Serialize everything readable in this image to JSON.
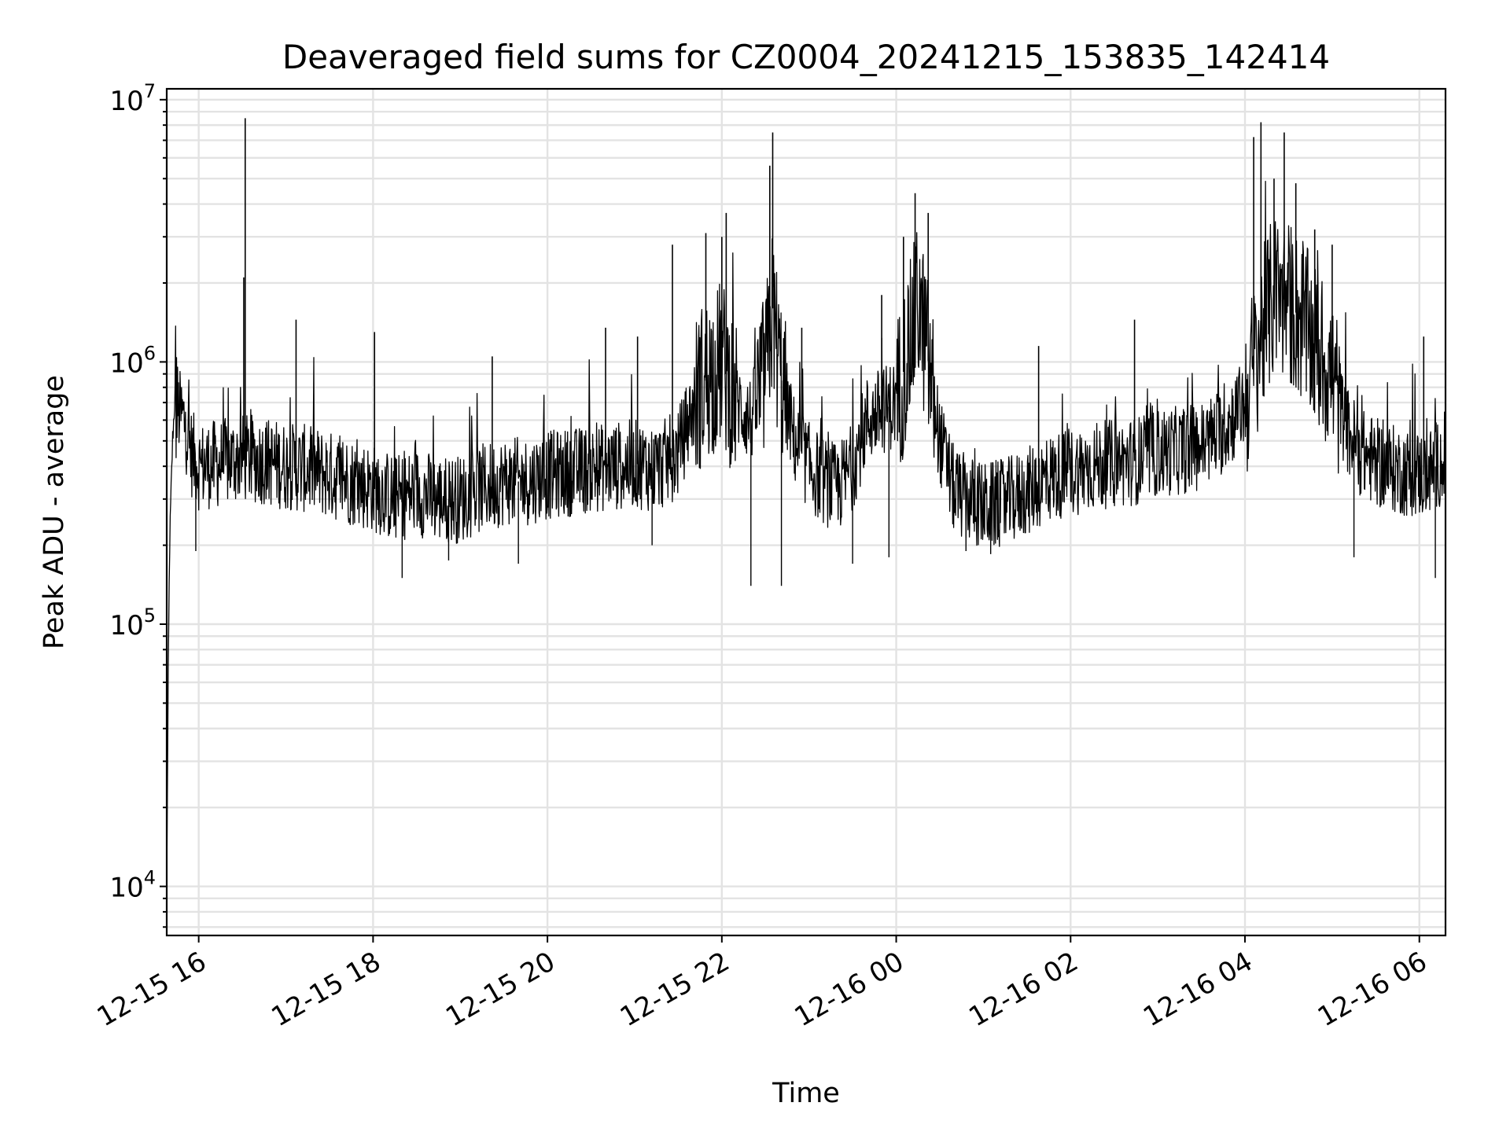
{
  "chart_data": {
    "type": "line",
    "title": "Deaveraged field sums for CZ0004_20241215_153835_142414",
    "xlabel": "Time",
    "ylabel": "Peak ADU - average",
    "yscale": "log",
    "grid": true,
    "xlim": [
      "2024-12-15T15:38",
      "2024-12-16T06:18"
    ],
    "ylim": [
      6500,
      11000000
    ],
    "x_ticks": [
      {
        "value": "2024-12-15T16:00",
        "label": "12-15 16"
      },
      {
        "value": "2024-12-15T18:00",
        "label": "12-15 18"
      },
      {
        "value": "2024-12-15T20:00",
        "label": "12-15 20"
      },
      {
        "value": "2024-12-15T22:00",
        "label": "12-15 22"
      },
      {
        "value": "2024-12-16T00:00",
        "label": "12-16 00"
      },
      {
        "value": "2024-12-16T02:00",
        "label": "12-16 02"
      },
      {
        "value": "2024-12-16T04:00",
        "label": "12-16 04"
      },
      {
        "value": "2024-12-16T06:00",
        "label": "12-16 06"
      }
    ],
    "y_ticks": [
      {
        "value": 10000,
        "base": "10",
        "exp": "4"
      },
      {
        "value": 100000,
        "base": "10",
        "exp": "5"
      },
      {
        "value": 1000000,
        "base": "10",
        "exp": "6"
      },
      {
        "value": 10000000,
        "base": "10",
        "exp": "7"
      }
    ],
    "series": [
      {
        "color": "#000000",
        "points": [
          [
            "2024-12-15T15:38",
            10000
          ],
          [
            "2024-12-15T15:39",
            60000
          ],
          [
            "2024-12-15T15:40",
            200000
          ],
          [
            "2024-12-15T15:42",
            500000
          ],
          [
            "2024-12-15T15:44",
            800000
          ],
          [
            "2024-12-15T15:46",
            650000
          ],
          [
            "2024-12-15T15:50",
            600000
          ],
          [
            "2024-12-15T15:55",
            450000
          ],
          [
            "2024-12-15T16:00",
            400000
          ],
          [
            "2024-12-15T16:15",
            410000
          ],
          [
            "2024-12-15T16:30",
            430000
          ],
          [
            "2024-12-15T16:45",
            420000
          ],
          [
            "2024-12-15T17:00",
            400000
          ],
          [
            "2024-12-15T17:15",
            390000
          ],
          [
            "2024-12-15T17:30",
            370000
          ],
          [
            "2024-12-15T17:45",
            350000
          ],
          [
            "2024-12-15T18:00",
            330000
          ],
          [
            "2024-12-15T18:15",
            300000
          ],
          [
            "2024-12-15T18:30",
            320000
          ],
          [
            "2024-12-15T18:45",
            300000
          ],
          [
            "2024-12-15T19:00",
            300000
          ],
          [
            "2024-12-15T19:15",
            330000
          ],
          [
            "2024-12-15T19:30",
            350000
          ],
          [
            "2024-12-15T19:45",
            350000
          ],
          [
            "2024-12-15T20:00",
            370000
          ],
          [
            "2024-12-15T20:15",
            380000
          ],
          [
            "2024-12-15T20:30",
            390000
          ],
          [
            "2024-12-15T20:45",
            400000
          ],
          [
            "2024-12-15T21:00",
            410000
          ],
          [
            "2024-12-15T21:15",
            390000
          ],
          [
            "2024-12-15T21:30",
            450000
          ],
          [
            "2024-12-15T21:45",
            800000
          ],
          [
            "2024-12-15T22:00",
            1000000
          ],
          [
            "2024-12-15T22:10",
            700000
          ],
          [
            "2024-12-15T22:20",
            600000
          ],
          [
            "2024-12-15T22:30",
            900000
          ],
          [
            "2024-12-15T22:35",
            1600000
          ],
          [
            "2024-12-15T22:40",
            900000
          ],
          [
            "2024-12-15T22:50",
            500000
          ],
          [
            "2024-12-15T23:00",
            400000
          ],
          [
            "2024-12-15T23:10",
            350000
          ],
          [
            "2024-12-15T23:20",
            330000
          ],
          [
            "2024-12-15T23:30",
            400000
          ],
          [
            "2024-12-15T23:40",
            600000
          ],
          [
            "2024-12-15T23:50",
            650000
          ],
          [
            "2024-12-16T00:00",
            700000
          ],
          [
            "2024-12-16T00:10",
            1200000
          ],
          [
            "2024-12-16T00:15",
            1700000
          ],
          [
            "2024-12-16T00:20",
            1200000
          ],
          [
            "2024-12-16T00:30",
            500000
          ],
          [
            "2024-12-16T00:40",
            320000
          ],
          [
            "2024-12-16T01:00",
            280000
          ],
          [
            "2024-12-16T01:15",
            290000
          ],
          [
            "2024-12-16T01:30",
            320000
          ],
          [
            "2024-12-16T01:45",
            360000
          ],
          [
            "2024-12-16T02:00",
            380000
          ],
          [
            "2024-12-16T02:15",
            400000
          ],
          [
            "2024-12-16T02:30",
            410000
          ],
          [
            "2024-12-16T02:45",
            420000
          ],
          [
            "2024-12-16T03:00",
            450000
          ],
          [
            "2024-12-16T03:15",
            460000
          ],
          [
            "2024-12-16T03:30",
            480000
          ],
          [
            "2024-12-16T03:45",
            550000
          ],
          [
            "2024-12-16T04:00",
            700000
          ],
          [
            "2024-12-16T04:10",
            1200000
          ],
          [
            "2024-12-16T04:20",
            1800000
          ],
          [
            "2024-12-16T04:30",
            1700000
          ],
          [
            "2024-12-16T04:40",
            1400000
          ],
          [
            "2024-12-16T04:50",
            1100000
          ],
          [
            "2024-12-16T05:00",
            900000
          ],
          [
            "2024-12-16T05:10",
            550000
          ],
          [
            "2024-12-16T05:20",
            450000
          ],
          [
            "2024-12-16T05:35",
            400000
          ],
          [
            "2024-12-16T05:50",
            380000
          ],
          [
            "2024-12-16T06:05",
            370000
          ],
          [
            "2024-12-16T06:15",
            420000
          ],
          [
            "2024-12-16T06:18",
            350000
          ]
        ]
      }
    ],
    "spikes": [
      [
        "2024-12-15T16:32",
        8500000
      ],
      [
        "2024-12-15T16:31",
        2100000
      ],
      [
        "2024-12-15T17:07",
        1450000
      ],
      [
        "2024-12-15T18:01",
        1300000
      ],
      [
        "2024-12-15T19:22",
        1050000
      ],
      [
        "2024-12-15T20:40",
        1350000
      ],
      [
        "2024-12-15T21:02",
        1250000
      ],
      [
        "2024-12-15T21:26",
        2800000
      ],
      [
        "2024-12-15T21:49",
        3100000
      ],
      [
        "2024-12-15T22:00",
        3000000
      ],
      [
        "2024-12-15T22:03",
        3700000
      ],
      [
        "2024-12-15T22:35",
        7500000
      ],
      [
        "2024-12-15T22:33",
        5600000
      ],
      [
        "2024-12-15T22:55",
        1350000
      ],
      [
        "2024-12-15T23:50",
        1800000
      ],
      [
        "2024-12-16T00:05",
        3000000
      ],
      [
        "2024-12-16T00:13",
        4400000
      ],
      [
        "2024-12-16T00:22",
        3700000
      ],
      [
        "2024-12-16T01:38",
        1150000
      ],
      [
        "2024-12-16T02:44",
        1450000
      ],
      [
        "2024-12-16T04:06",
        7200000
      ],
      [
        "2024-12-16T04:11",
        8200000
      ],
      [
        "2024-12-16T04:27",
        7500000
      ],
      [
        "2024-12-16T04:20",
        5000000
      ],
      [
        "2024-12-16T04:35",
        4800000
      ],
      [
        "2024-12-16T04:48",
        3200000
      ],
      [
        "2024-12-16T05:00",
        2800000
      ],
      [
        "2024-12-16T06:03",
        1250000
      ]
    ],
    "dips": [
      [
        "2024-12-15T15:58",
        190000
      ],
      [
        "2024-12-15T18:20",
        150000
      ],
      [
        "2024-12-15T18:52",
        175000
      ],
      [
        "2024-12-15T19:40",
        170000
      ],
      [
        "2024-12-15T21:12",
        200000
      ],
      [
        "2024-12-15T22:20",
        140000
      ],
      [
        "2024-12-15T22:41",
        140000
      ],
      [
        "2024-12-15T23:30",
        170000
      ],
      [
        "2024-12-15T23:55",
        180000
      ],
      [
        "2024-12-16T00:48",
        190000
      ],
      [
        "2024-12-16T01:05",
        185000
      ],
      [
        "2024-12-16T05:15",
        180000
      ],
      [
        "2024-12-16T06:11",
        150000
      ]
    ]
  }
}
